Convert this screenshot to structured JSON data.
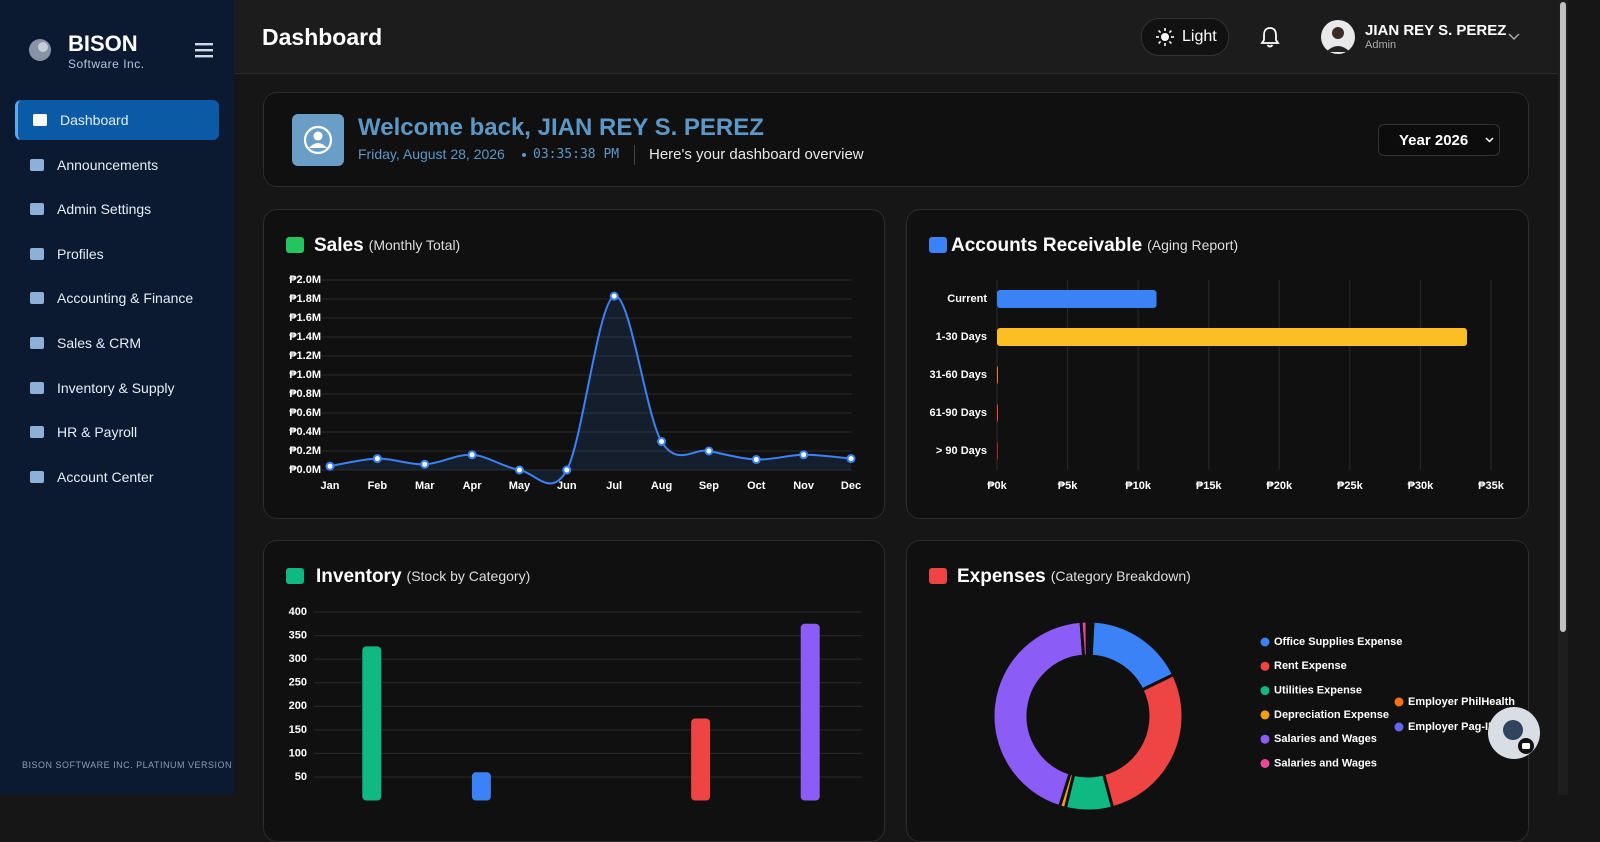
{
  "sidebar": {
    "brand": "BISON",
    "brand_sub": "Software Inc.",
    "items": [
      "Dashboard",
      "Announcements",
      "Admin Settings",
      "Profiles",
      "Accounting & Finance",
      "Sales & CRM",
      "Inventory & Supply",
      "HR & Payroll",
      "Account Center"
    ],
    "footer": "BISON SOFTWARE INC. PLATINUM VERSION"
  },
  "topbar": {
    "title": "Dashboard",
    "theme": "Light",
    "user": "JIAN REY S. PEREZ",
    "role": "Admin"
  },
  "welcome": {
    "greeting": "Welcome back, JIAN REY S. PEREZ",
    "date": "Friday, August 28, 2026",
    "time": "03:35:38 PM",
    "note": "Here's your dashboard overview",
    "year": "Year 2026"
  },
  "chart_data": [
    {
      "type": "line",
      "title": "Sales",
      "subtitle": "(Monthly Total)",
      "categories": [
        "Jan",
        "Feb",
        "Mar",
        "Apr",
        "May",
        "Jun",
        "Jul",
        "Aug",
        "Sep",
        "Oct",
        "Nov",
        "Dec"
      ],
      "values": [
        0.04,
        0.12,
        0.06,
        0.16,
        0,
        0,
        1.83,
        0.3,
        0.2,
        0.11,
        0.16,
        0.12
      ],
      "color": "#3b82f6",
      "ylim": [
        0,
        2.0
      ],
      "yticks": [
        {
          "value": 0,
          "label": "₱0.0M"
        },
        {
          "value": 0.2,
          "label": "₱0.2M"
        },
        {
          "value": 0.4,
          "label": "₱0.4M"
        },
        {
          "value": 0.6,
          "label": "₱0.6M"
        },
        {
          "value": 0.8,
          "label": "₱0.8M"
        },
        {
          "value": 1.0,
          "label": "₱1.0M"
        },
        {
          "value": 1.2,
          "label": "₱1.2M"
        },
        {
          "value": 1.4,
          "label": "₱1.4M"
        },
        {
          "value": 1.6,
          "label": "₱1.6M"
        },
        {
          "value": 1.8,
          "label": "₱1.8M"
        },
        {
          "value": 2.0,
          "label": "₱2.0M"
        }
      ],
      "grid": true
    },
    {
      "type": "hbar",
      "title": "Accounts Receivable",
      "subtitle": "(Aging Report)",
      "categories": [
        "Current",
        "1-30 Days",
        "31-60 Days",
        "61-90 Days",
        "> 90 Days"
      ],
      "values": [
        11300,
        33300,
        0,
        0,
        0
      ],
      "colors": [
        "#3b82f6",
        "#fbbf24",
        "#f97316",
        "#ef4444",
        "#b91c1c"
      ],
      "xlim": [
        0,
        35000
      ],
      "xticks": [
        {
          "value": 0,
          "label": "₱0k"
        },
        {
          "value": 5000,
          "label": "₱5k"
        },
        {
          "value": 10000,
          "label": "₱10k"
        },
        {
          "value": 15000,
          "label": "₱15k"
        },
        {
          "value": 20000,
          "label": "₱20k"
        },
        {
          "value": 25000,
          "label": "₱25k"
        },
        {
          "value": 30000,
          "label": "₱30k"
        },
        {
          "value": 35000,
          "label": "₱35k"
        }
      ],
      "grid": true
    },
    {
      "type": "bar",
      "title": "Inventory",
      "subtitle": "(Stock by Category)",
      "categories": [
        null,
        null,
        null,
        null,
        null
      ],
      "values": [
        327,
        60,
        0,
        174,
        375
      ],
      "colors": [
        "#10b981",
        "#3b82f6",
        "#f59e0b",
        "#ef4444",
        "#8b5cf6"
      ],
      "ylim": [
        0,
        400
      ],
      "yticks": [
        50,
        100,
        150,
        200,
        250,
        300,
        350,
        400
      ],
      "grid": true
    },
    {
      "type": "doughnut",
      "title": "Expenses",
      "subtitle": "(Category Breakdown)",
      "categories": [
        "Office Supplies Expense",
        "Rent Expense",
        "Utilities Expense",
        "Depreciation Expense",
        "Salaries and Wages",
        "Salaries and Wages",
        "Employer PhilHealth",
        "Employer Pag-IBIG"
      ],
      "values": [
        17,
        28,
        8,
        1,
        44,
        1,
        0.5,
        0.5
      ],
      "colors": [
        "#3b82f6",
        "#ef4444",
        "#10b981",
        "#f59e0b",
        "#8b5cf6",
        "#ec4899",
        "#f97316",
        "#6366f1"
      ]
    }
  ]
}
